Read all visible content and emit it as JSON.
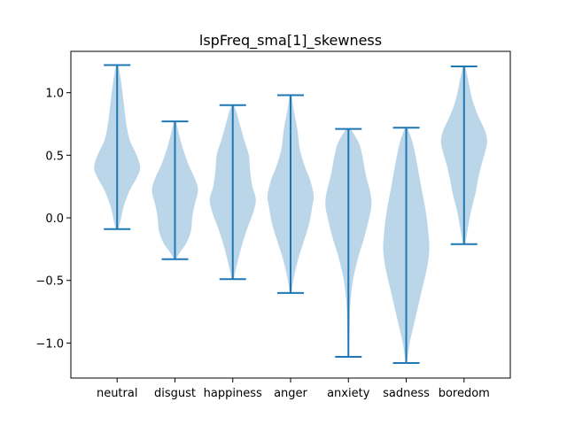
{
  "chart_data": {
    "type": "violin",
    "title": "lspFreq_sma[1]_skewness",
    "xlabel": "",
    "ylabel": "",
    "categories": [
      "neutral",
      "disgust",
      "happiness",
      "anger",
      "anxiety",
      "sadness",
      "boredom"
    ],
    "ylim": [
      -1.28,
      1.33
    ],
    "yticks": [
      -1.0,
      -0.5,
      0.0,
      0.5,
      1.0
    ],
    "ytick_labels": [
      "−1.0",
      "−0.5",
      "0.0",
      "0.5",
      "1.0"
    ],
    "grid": false,
    "colors": {
      "body": "#1f77b4",
      "body_opacity": 0.3,
      "lines": "#1f77b4"
    },
    "series": [
      {
        "category": "neutral",
        "min": -0.09,
        "max": 1.22,
        "density": [
          [
            -0.09,
            0.06
          ],
          [
            -0.02,
            0.15
          ],
          [
            0.1,
            0.3
          ],
          [
            0.22,
            0.55
          ],
          [
            0.32,
            0.85
          ],
          [
            0.4,
            1.0
          ],
          [
            0.5,
            0.85
          ],
          [
            0.62,
            0.55
          ],
          [
            0.75,
            0.4
          ],
          [
            0.9,
            0.3
          ],
          [
            1.05,
            0.2
          ],
          [
            1.15,
            0.12
          ],
          [
            1.22,
            0.05
          ]
        ]
      },
      {
        "category": "disgust",
        "min": -0.33,
        "max": 0.77,
        "density": [
          [
            -0.33,
            0.05
          ],
          [
            -0.28,
            0.2
          ],
          [
            -0.2,
            0.5
          ],
          [
            -0.1,
            0.7
          ],
          [
            0.0,
            0.75
          ],
          [
            0.1,
            0.85
          ],
          [
            0.22,
            1.0
          ],
          [
            0.32,
            0.85
          ],
          [
            0.42,
            0.6
          ],
          [
            0.55,
            0.35
          ],
          [
            0.65,
            0.2
          ],
          [
            0.77,
            0.05
          ]
        ]
      },
      {
        "category": "happiness",
        "min": -0.49,
        "max": 0.9,
        "density": [
          [
            -0.49,
            0.04
          ],
          [
            -0.4,
            0.15
          ],
          [
            -0.25,
            0.35
          ],
          [
            -0.1,
            0.6
          ],
          [
            0.05,
            0.9
          ],
          [
            0.15,
            1.0
          ],
          [
            0.25,
            0.85
          ],
          [
            0.38,
            0.75
          ],
          [
            0.5,
            0.7
          ],
          [
            0.62,
            0.5
          ],
          [
            0.75,
            0.3
          ],
          [
            0.85,
            0.15
          ],
          [
            0.9,
            0.04
          ]
        ]
      },
      {
        "category": "anger",
        "min": -0.6,
        "max": 0.98,
        "density": [
          [
            -0.6,
            0.04
          ],
          [
            -0.5,
            0.12
          ],
          [
            -0.35,
            0.3
          ],
          [
            -0.2,
            0.55
          ],
          [
            -0.05,
            0.8
          ],
          [
            0.1,
            0.95
          ],
          [
            0.18,
            1.0
          ],
          [
            0.3,
            0.85
          ],
          [
            0.42,
            0.6
          ],
          [
            0.55,
            0.4
          ],
          [
            0.7,
            0.3
          ],
          [
            0.85,
            0.15
          ],
          [
            0.98,
            0.04
          ]
        ]
      },
      {
        "category": "anxiety",
        "min": -1.11,
        "max": 0.71,
        "density": [
          [
            -1.11,
            0.02
          ],
          [
            -0.9,
            0.05
          ],
          [
            -0.7,
            0.08
          ],
          [
            -0.5,
            0.2
          ],
          [
            -0.3,
            0.45
          ],
          [
            -0.15,
            0.7
          ],
          [
            0.0,
            0.9
          ],
          [
            0.1,
            1.0
          ],
          [
            0.2,
            0.95
          ],
          [
            0.35,
            0.75
          ],
          [
            0.5,
            0.6
          ],
          [
            0.6,
            0.45
          ],
          [
            0.71,
            0.1
          ]
        ]
      },
      {
        "category": "sadness",
        "min": -1.16,
        "max": 0.72,
        "density": [
          [
            -1.16,
            0.03
          ],
          [
            -1.0,
            0.15
          ],
          [
            -0.8,
            0.4
          ],
          [
            -0.6,
            0.65
          ],
          [
            -0.4,
            0.9
          ],
          [
            -0.25,
            1.0
          ],
          [
            -0.1,
            0.95
          ],
          [
            0.05,
            0.85
          ],
          [
            0.2,
            0.7
          ],
          [
            0.35,
            0.55
          ],
          [
            0.5,
            0.4
          ],
          [
            0.62,
            0.25
          ],
          [
            0.72,
            0.05
          ]
        ]
      },
      {
        "category": "boredom",
        "min": -0.21,
        "max": 1.21,
        "density": [
          [
            -0.21,
            0.05
          ],
          [
            -0.1,
            0.15
          ],
          [
            0.05,
            0.3
          ],
          [
            0.2,
            0.5
          ],
          [
            0.3,
            0.6
          ],
          [
            0.42,
            0.75
          ],
          [
            0.55,
            0.95
          ],
          [
            0.62,
            1.0
          ],
          [
            0.7,
            0.9
          ],
          [
            0.82,
            0.6
          ],
          [
            0.95,
            0.35
          ],
          [
            1.1,
            0.18
          ],
          [
            1.21,
            0.05
          ]
        ]
      }
    ]
  }
}
